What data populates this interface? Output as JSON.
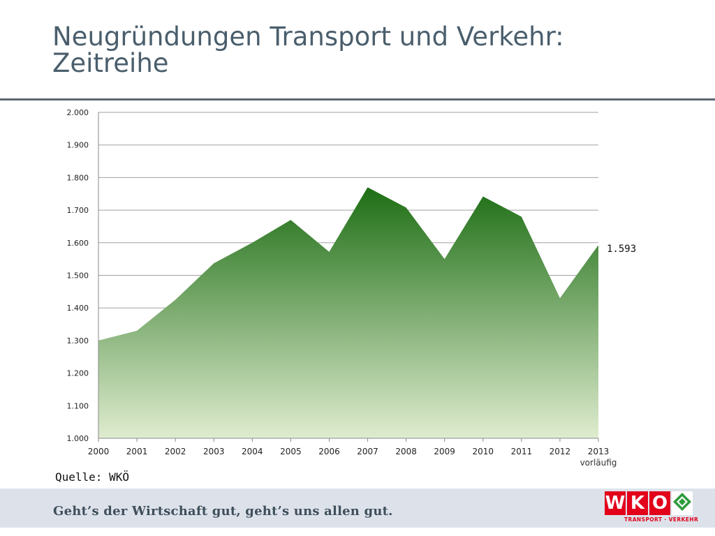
{
  "header": {
    "title_line1": "Neugründungen Transport und Verkehr:",
    "title_line2": "Zeitreihe"
  },
  "chart_data": {
    "type": "area",
    "title": "Neugründungen Transport und Verkehr: Zeitreihe",
    "x": [
      "2000",
      "2001",
      "2002",
      "2003",
      "2004",
      "2005",
      "2006",
      "2007",
      "2008",
      "2009",
      "2010",
      "2011",
      "2012",
      "2013"
    ],
    "values": [
      1300,
      1330,
      1425,
      1537,
      1600,
      1670,
      1572,
      1770,
      1708,
      1550,
      1742,
      1680,
      1430,
      1593
    ],
    "ylim": [
      1000,
      2000
    ],
    "yticks": [
      1000,
      1100,
      1200,
      1300,
      1400,
      1500,
      1600,
      1700,
      1800,
      1900,
      2000
    ],
    "ytick_labels": [
      "1.000",
      "1.100",
      "1.200",
      "1.300",
      "1.400",
      "1.500",
      "1.600",
      "1.700",
      "1.800",
      "1.900",
      "2.000"
    ],
    "grid": true,
    "last_value_label": "1.593",
    "last_category_note": "vorläufig",
    "xlabel": "",
    "ylabel": ""
  },
  "source": "Quelle: WKÖ",
  "footer": {
    "slogan": "Geht’s der Wirtschaft gut, geht’s uns allen gut.",
    "logo_letters": [
      "W",
      "K",
      "O"
    ],
    "logo_subtitle": "TRANSPORT · VERKEHR"
  },
  "colors": {
    "area_top": "#1e6e15",
    "area_bottom": "#dfeccf",
    "title": "#4a5e6c",
    "brand_red": "#e2001a",
    "brand_green": "#2e9b3c"
  }
}
